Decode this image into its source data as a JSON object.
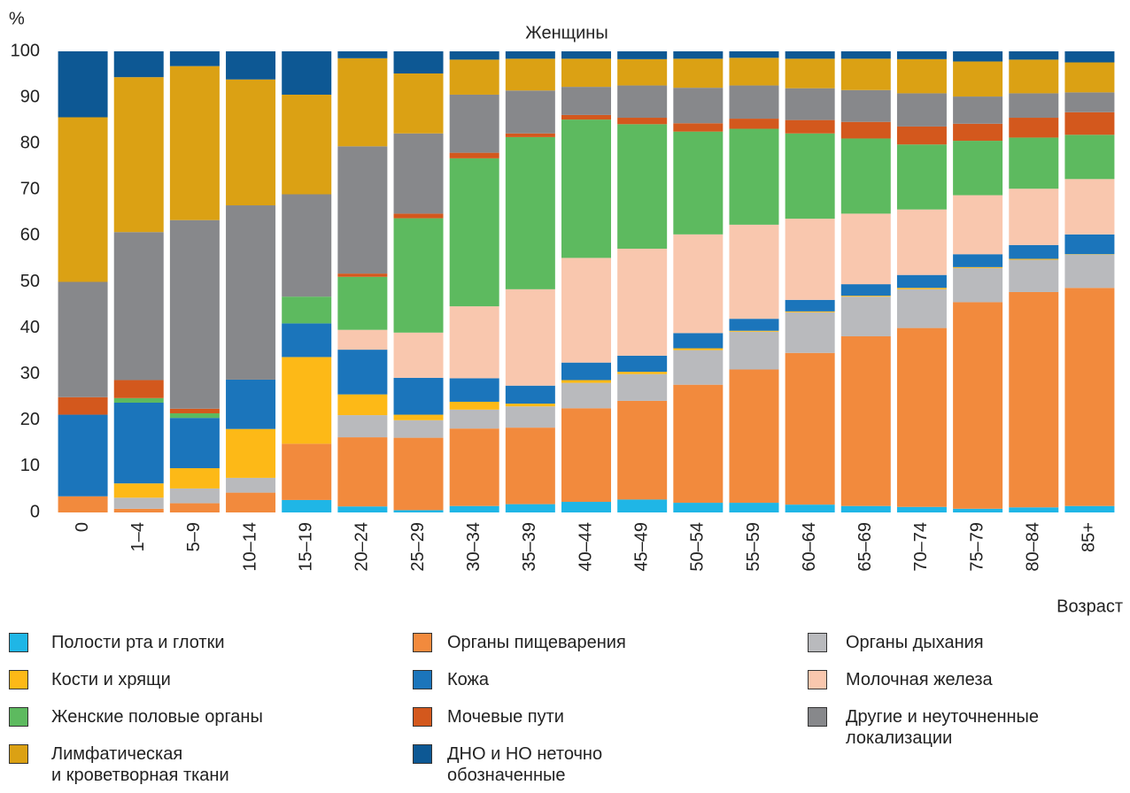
{
  "chart_data": {
    "type": "bar",
    "stacked": true,
    "title": "Женщины",
    "y_label": "%",
    "x_label": "Возраст",
    "categories": [
      "0",
      "1–4",
      "5–9",
      "10–14",
      "15–19",
      "20–24",
      "25–29",
      "30–34",
      "35–39",
      "40–44",
      "45–49",
      "50–54",
      "55–59",
      "60–64",
      "65–69",
      "70–74",
      "75–79",
      "80–84",
      "85+"
    ],
    "ylim": [
      0,
      100
    ],
    "yticks": [
      0,
      10,
      20,
      30,
      40,
      50,
      60,
      70,
      80,
      90,
      100
    ],
    "grid": false,
    "series": [
      {
        "name": "Полости рта и глотки",
        "color": "#1fb6e6",
        "values": [
          0,
          0,
          0,
          0,
          2.7,
          1.3,
          0.5,
          1.4,
          1.8,
          2.3,
          2.8,
          2.1,
          2.1,
          1.7,
          1.4,
          1.2,
          0.8,
          1.1,
          1.4
        ]
      },
      {
        "name": "Органы пищеварения",
        "color": "#f28a3d",
        "values": [
          3.5,
          0.8,
          2,
          4.3,
          12.2,
          15,
          15.7,
          16.8,
          16.6,
          20.3,
          21.4,
          25.6,
          28.9,
          32.9,
          36.8,
          38.8,
          44.8,
          46.7,
          47.3
        ]
      },
      {
        "name": "Органы дыхания",
        "color": "#b9babd",
        "values": [
          0,
          2.4,
          3.2,
          3.2,
          0,
          4.8,
          3.8,
          4.1,
          4.6,
          5.5,
          5.8,
          7.5,
          8.2,
          8.8,
          8.6,
          8.4,
          7.4,
          7,
          7.2
        ]
      },
      {
        "name": "Кости и хрящи",
        "color": "#fdb917",
        "values": [
          0,
          3.1,
          4.4,
          10.6,
          18.8,
          4.5,
          1.2,
          1.7,
          0.6,
          0.6,
          0.5,
          0.4,
          0.2,
          0.2,
          0.2,
          0.3,
          0.2,
          0.2,
          0.1
        ]
      },
      {
        "name": "Кожа",
        "color": "#1b75bb",
        "values": [
          17.7,
          17.5,
          10.9,
          10.7,
          7.3,
          9.7,
          8,
          5.1,
          3.9,
          3.8,
          3.5,
          3.3,
          2.6,
          2.5,
          2.5,
          2.8,
          2.8,
          3,
          4.3
        ]
      },
      {
        "name": "Молочная железа",
        "color": "#f9c7ae",
        "values": [
          0,
          0,
          0,
          0,
          0,
          4.3,
          9.8,
          15.6,
          20.9,
          22.7,
          23.2,
          21.4,
          20.4,
          17.6,
          15.3,
          14.2,
          12.8,
          12.2,
          12
        ]
      },
      {
        "name": "Женские половые органы",
        "color": "#5dba5f",
        "values": [
          0,
          1,
          1,
          0,
          5.8,
          11.5,
          24.8,
          32.1,
          33,
          30,
          27,
          22.3,
          20.8,
          18.5,
          16.3,
          14.1,
          11.8,
          11.1,
          9.6
        ]
      },
      {
        "name": "Мочевые пути",
        "color": "#d3581d",
        "values": [
          3.8,
          3.9,
          1,
          0,
          0,
          0.7,
          1,
          1.2,
          0.8,
          1,
          1.4,
          1.8,
          2.2,
          2.9,
          3.6,
          3.9,
          3.7,
          4.3,
          4.9
        ]
      },
      {
        "name": "Другие и неуточненные\nлокализации",
        "color": "#87888b",
        "values": [
          25,
          32.1,
          40.9,
          37.8,
          22.2,
          27.6,
          17.4,
          12.6,
          9.3,
          6.1,
          7,
          7.7,
          7.2,
          6.9,
          6.9,
          7.2,
          5.9,
          5.3,
          4.3
        ]
      },
      {
        "name": "Лимфатическая\nи кроветворная ткани",
        "color": "#dba114",
        "values": [
          35.7,
          33.6,
          33.4,
          27.3,
          21.6,
          19.1,
          13,
          7.6,
          6.9,
          6.1,
          5.7,
          6.3,
          6,
          6.4,
          6.8,
          7.4,
          7.6,
          7.3,
          6.5
        ]
      },
      {
        "name": "ДНО и НО неточно\nобозначенные",
        "color": "#0d5894",
        "values": [
          14.3,
          5.6,
          3.2,
          6.1,
          9.4,
          1.5,
          4.8,
          1.8,
          1.6,
          1.6,
          1.7,
          1.6,
          1.4,
          1.6,
          1.6,
          1.7,
          2.2,
          1.8,
          2.4
        ]
      }
    ]
  }
}
